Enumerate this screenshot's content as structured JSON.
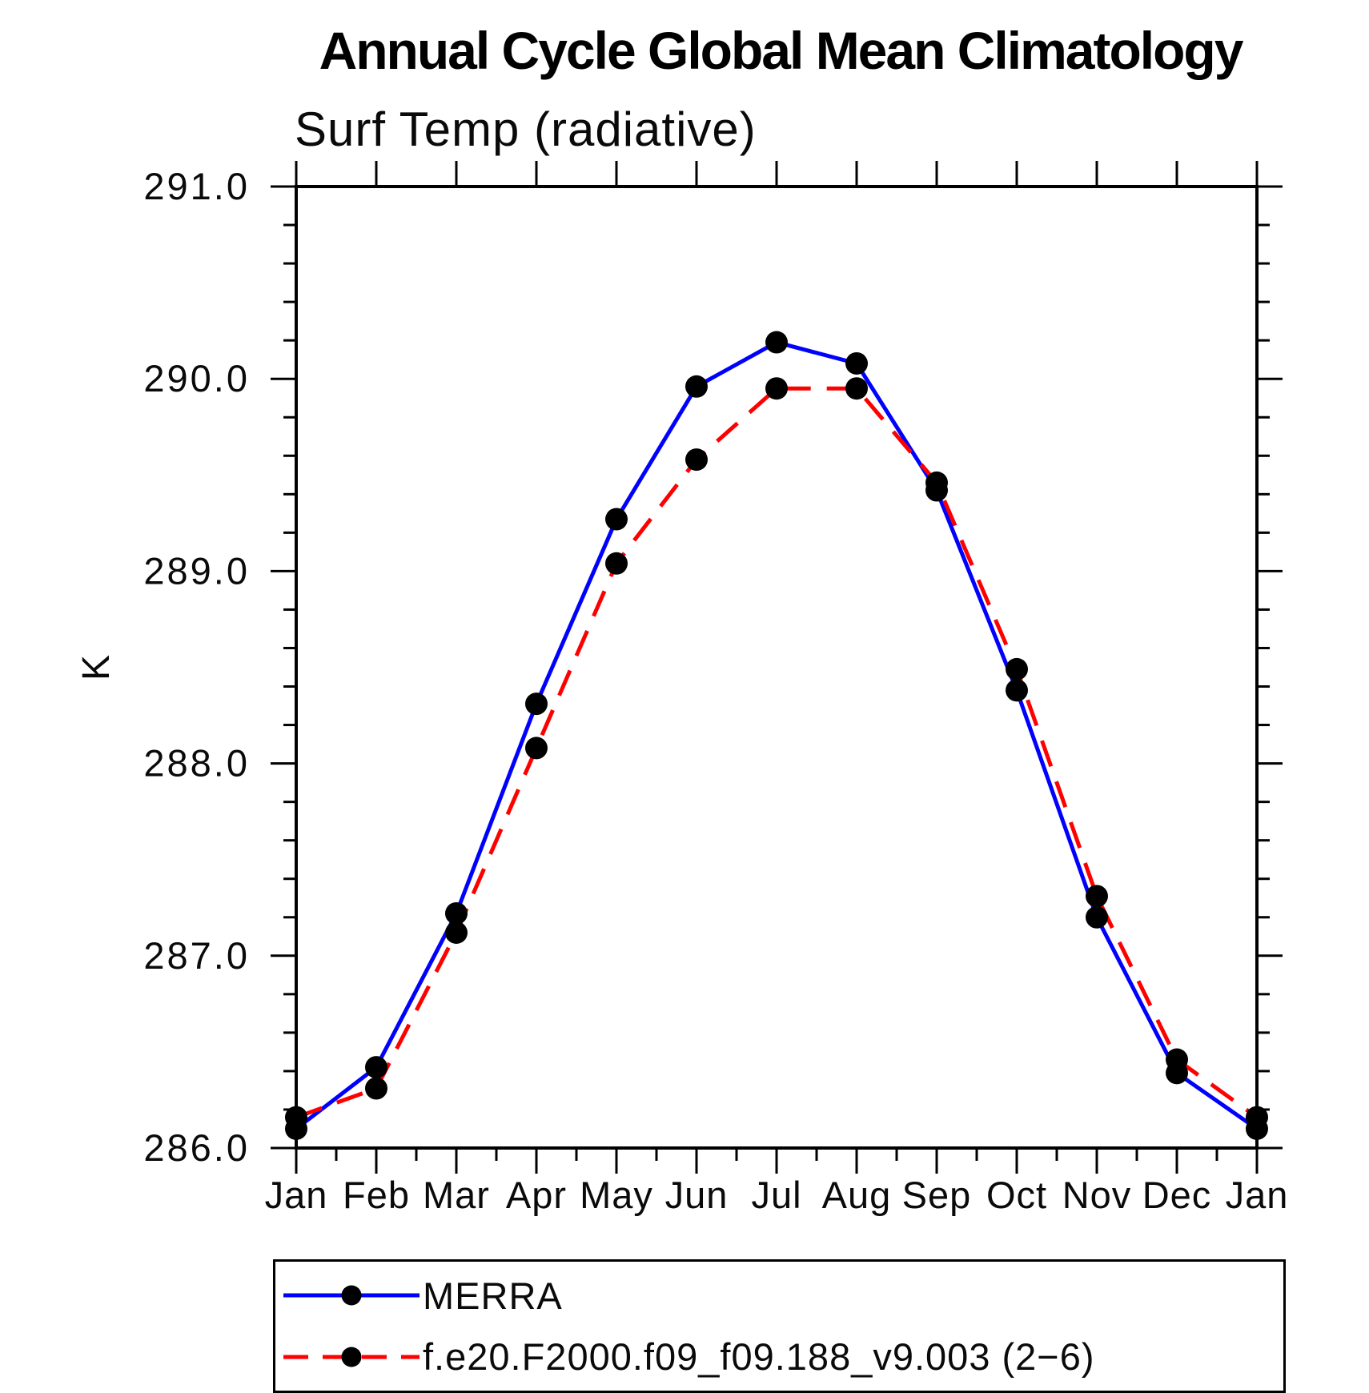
{
  "page": {
    "background": "#ffffff"
  },
  "chart_data": {
    "type": "line",
    "title": "Annual Cycle Global Mean Climatology",
    "subtitle": "Surf Temp (radiative)",
    "ylabel": "K",
    "xlabel": "",
    "categories": [
      "Jan",
      "Feb",
      "Mar",
      "Apr",
      "May",
      "Jun",
      "Jul",
      "Aug",
      "Sep",
      "Oct",
      "Nov",
      "Dec",
      "Jan"
    ],
    "ylim": [
      286.0,
      291.0
    ],
    "ytick_major_step": 1.0,
    "ytick_minor_step": 0.2,
    "ytick_labels": [
      "286.0",
      "287.0",
      "288.0",
      "289.0",
      "290.0",
      "291.0"
    ],
    "grid": false,
    "legend_position": "bottom",
    "axis_color": "#000000",
    "marker_color": "#000000",
    "series": [
      {
        "name": "MERRA",
        "color": "#0000ff",
        "line_style": "solid",
        "marker": "circle",
        "values": [
          286.1,
          286.42,
          287.22,
          288.31,
          289.27,
          289.96,
          290.19,
          290.08,
          289.42,
          288.38,
          287.2,
          286.39,
          286.1
        ]
      },
      {
        "name": "f.e20.F2000.f09_f09.188_v9.003 (2−6)",
        "color": "#ff0000",
        "line_style": "dashed",
        "marker": "circle",
        "values": [
          286.16,
          286.31,
          287.12,
          288.08,
          289.04,
          289.58,
          289.95,
          289.95,
          289.46,
          288.49,
          287.31,
          286.46,
          286.16
        ]
      }
    ]
  }
}
